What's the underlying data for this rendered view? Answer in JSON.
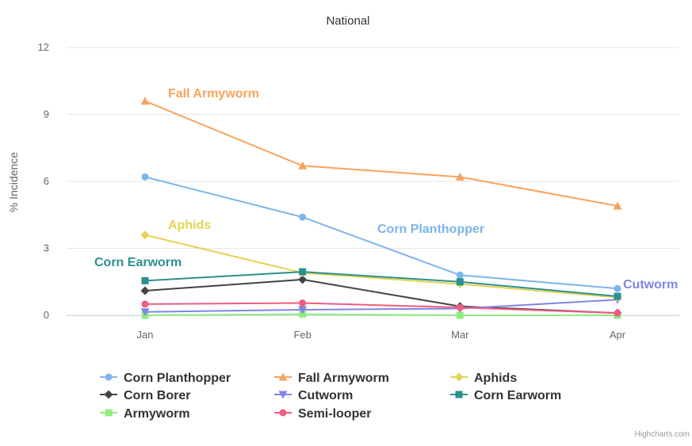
{
  "chart_data": {
    "type": "line",
    "title": "National",
    "ylabel": "% Incidence",
    "categories": [
      "Jan",
      "Feb",
      "Mar",
      "Apr"
    ],
    "ylim": [
      0,
      12
    ],
    "yticks": [
      0,
      3,
      6,
      9,
      12
    ],
    "grid": true,
    "legend_position": "bottom",
    "series": [
      {
        "name": "Corn Planthopper",
        "color": "#7cb5ec",
        "marker": "circle",
        "values": [
          6.2,
          4.4,
          1.8,
          1.2
        ]
      },
      {
        "name": "Corn Borer",
        "color": "#434348",
        "marker": "diamond",
        "values": [
          1.1,
          1.6,
          0.4,
          0.1
        ]
      },
      {
        "name": "Armyworm",
        "color": "#90ed7d",
        "marker": "square",
        "values": [
          0.0,
          0.05,
          0.0,
          0.0
        ]
      },
      {
        "name": "Fall Armyworm",
        "color": "#f7a35c",
        "marker": "triangle",
        "values": [
          9.6,
          6.7,
          6.2,
          4.9
        ]
      },
      {
        "name": "Cutworm",
        "color": "#8085e9",
        "marker": "triangle-down",
        "values": [
          0.15,
          0.25,
          0.3,
          0.7
        ]
      },
      {
        "name": "Semi-looper",
        "color": "#f15c80",
        "marker": "circle",
        "values": [
          0.5,
          0.55,
          0.35,
          0.1
        ]
      },
      {
        "name": "Aphids",
        "color": "#e4d354",
        "marker": "diamond",
        "values": [
          3.6,
          1.9,
          1.4,
          0.8
        ]
      },
      {
        "name": "Corn Earworm",
        "color": "#2b908f",
        "marker": "square",
        "values": [
          1.55,
          1.95,
          1.5,
          0.85
        ]
      }
    ],
    "annotations": [
      {
        "text": "Fall Armyworm",
        "color": "#f7a35c"
      },
      {
        "text": "Corn Planthopper",
        "color": "#7cb5ec"
      },
      {
        "text": "Aphids",
        "color": "#e4d354"
      },
      {
        "text": "Corn Earworm",
        "color": "#2b908f"
      },
      {
        "text": "Cutworm",
        "color": "#8085e9"
      }
    ],
    "credit": "Highcharts.com"
  }
}
